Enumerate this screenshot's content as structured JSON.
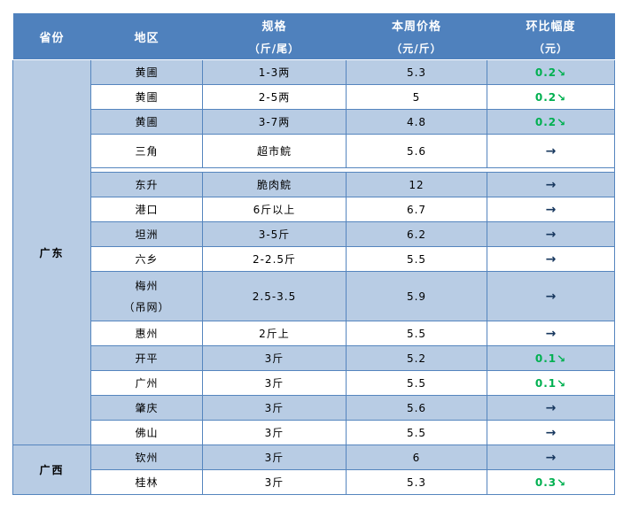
{
  "table": {
    "header": {
      "col1": "省份",
      "col2": "地区",
      "col3_line1": "规格",
      "col3_line2": "（斤/尾）",
      "col4_line1": "本周价格",
      "col4_line2": "（元/斤）",
      "col5_line1": "环比幅度",
      "col5_line2": "（元）"
    },
    "provinces": [
      {
        "name": "广东"
      },
      {
        "name": "广西"
      }
    ],
    "rows": [
      {
        "region": "黄圃",
        "spec": "1-3两",
        "price": "5.3",
        "change": "0.2↘",
        "trend": "down"
      },
      {
        "region": "黄圃",
        "spec": "2-5两",
        "price": "5",
        "change": "0.2↘",
        "trend": "down"
      },
      {
        "region": "黄圃",
        "spec": "3-7两",
        "price": "4.8",
        "change": "0.2↘",
        "trend": "down"
      },
      {
        "region": "三角",
        "spec": "超市鲩",
        "price": "5.6",
        "change": "→",
        "trend": "flat"
      },
      {
        "region": "东升",
        "spec": "脆肉鲩",
        "price": "12",
        "change": "→",
        "trend": "flat"
      },
      {
        "region": "港口",
        "spec": "6斤以上",
        "price": "6.7",
        "change": "→",
        "trend": "flat"
      },
      {
        "region": "坦洲",
        "spec": "3-5斤",
        "price": "6.2",
        "change": "→",
        "trend": "flat"
      },
      {
        "region": "六乡",
        "spec": "2-2.5斤",
        "price": "5.5",
        "change": "→",
        "trend": "flat"
      },
      {
        "region": "梅州\n（吊网）",
        "spec": "2.5-3.5",
        "price": "5.9",
        "change": "→",
        "trend": "flat"
      },
      {
        "region": "惠州",
        "spec": "2斤上",
        "price": "5.5",
        "change": "→",
        "trend": "flat"
      },
      {
        "region": "开平",
        "spec": "3斤",
        "price": "5.2",
        "change": "0.1↘",
        "trend": "down"
      },
      {
        "region": "广州",
        "spec": "3斤",
        "price": "5.5",
        "change": "0.1↘",
        "trend": "down"
      },
      {
        "region": "肇庆",
        "spec": "3斤",
        "price": "5.6",
        "change": "→",
        "trend": "flat"
      },
      {
        "region": "佛山",
        "spec": "3斤",
        "price": "5.5",
        "change": "→",
        "trend": "flat"
      },
      {
        "region": "钦州",
        "spec": "3斤",
        "price": "6",
        "change": "→",
        "trend": "flat"
      },
      {
        "region": "桂林",
        "spec": "3斤",
        "price": "5.3",
        "change": "0.3↘",
        "trend": "down"
      }
    ],
    "colors": {
      "header_bg": "#4F81BD",
      "row_stripe_bg": "#B8CCE4",
      "border": "#5585BE",
      "decline_green": "#00B050",
      "steady_arrow": "#17375E"
    }
  }
}
